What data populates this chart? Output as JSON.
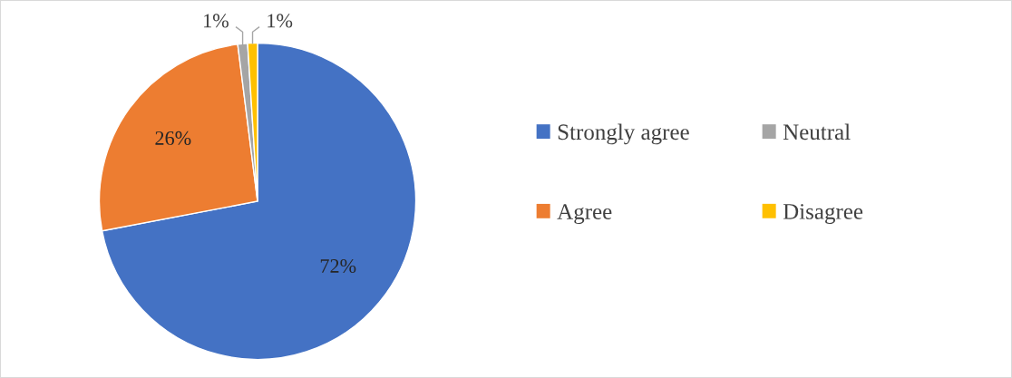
{
  "chart_data": {
    "type": "pie",
    "categories": [
      "Strongly agree",
      "Agree",
      "Neutral",
      "Disagree"
    ],
    "values": [
      72,
      26,
      1,
      1
    ],
    "colors": [
      "#4472c4",
      "#ed7d31",
      "#a5a5a5",
      "#ffc000"
    ],
    "value_labels": [
      "72%",
      "26%",
      "1%",
      "1%"
    ],
    "legend": "right"
  }
}
